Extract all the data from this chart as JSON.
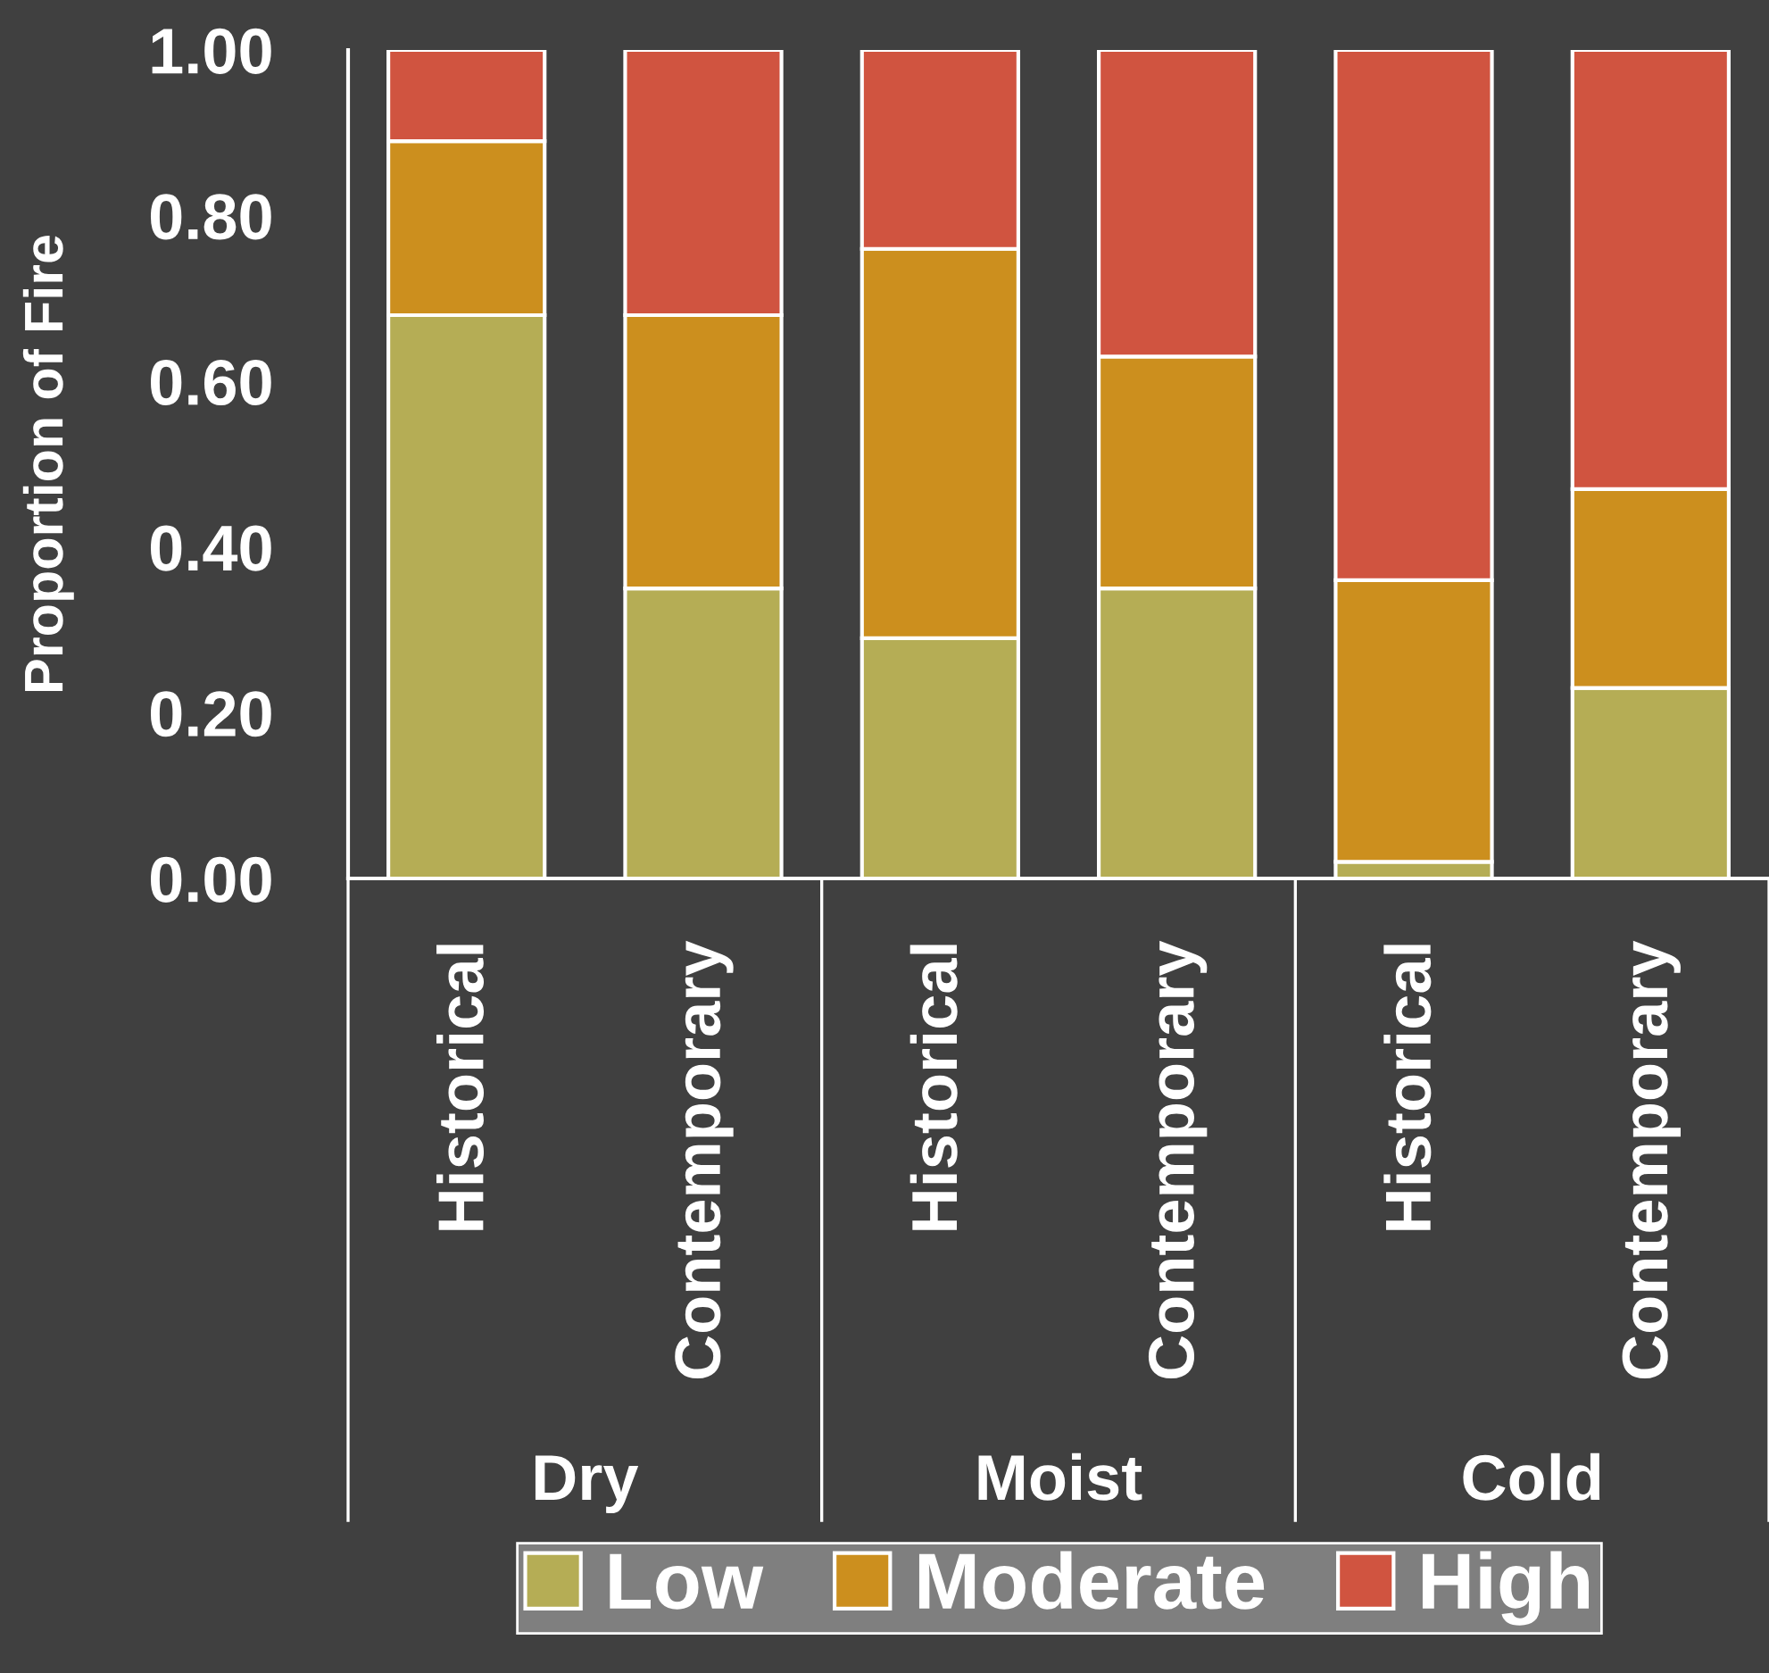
{
  "chart_data": {
    "type": "bar",
    "stacked": true,
    "ylabel": "Proportion of Fire",
    "categories": [
      "Historical",
      "Contemporary",
      "Historical",
      "Contemporary",
      "Historical",
      "Contemporary"
    ],
    "annotations": [
      "Dry",
      "Moist",
      "Cold"
    ],
    "series": [
      {
        "name": "Low",
        "color": "#b5ad55",
        "values": [
          0.68,
          0.35,
          0.29,
          0.35,
          0.02,
          0.23
        ]
      },
      {
        "name": "Moderate",
        "color": "#cc8f1e",
        "values": [
          0.21,
          0.33,
          0.47,
          0.28,
          0.34,
          0.24
        ]
      },
      {
        "name": "High",
        "color": "#d05440",
        "values": [
          0.11,
          0.32,
          0.24,
          0.37,
          0.64,
          0.53
        ]
      }
    ],
    "ylim": [
      0,
      1
    ],
    "yticks": [
      {
        "value": 0,
        "label": "0.00"
      },
      {
        "value": 0.2,
        "label": "0.20"
      },
      {
        "value": 0.4,
        "label": "0.40"
      },
      {
        "value": 0.6,
        "label": "0.60"
      },
      {
        "value": 0.8,
        "label": "0.80"
      },
      {
        "value": 1,
        "label": "1.00"
      }
    ],
    "grid": false,
    "legend": "bottom"
  }
}
